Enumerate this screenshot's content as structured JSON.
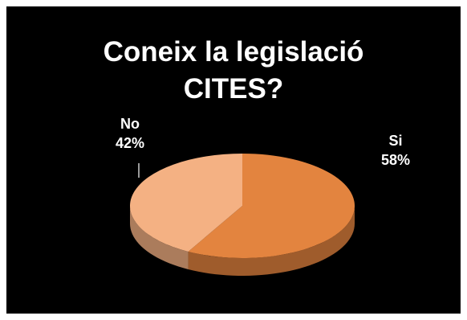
{
  "chart_data": {
    "type": "pie",
    "title_lines": [
      "Coneix la legislació",
      "CITES?"
    ],
    "slices": [
      {
        "label": "Si",
        "value": 58,
        "pct_text": "58%",
        "color": "#E3843F"
      },
      {
        "label": "No",
        "value": 42,
        "pct_text": "42%",
        "color": "#F4B183"
      }
    ],
    "background": "#000000",
    "legend": "none"
  }
}
